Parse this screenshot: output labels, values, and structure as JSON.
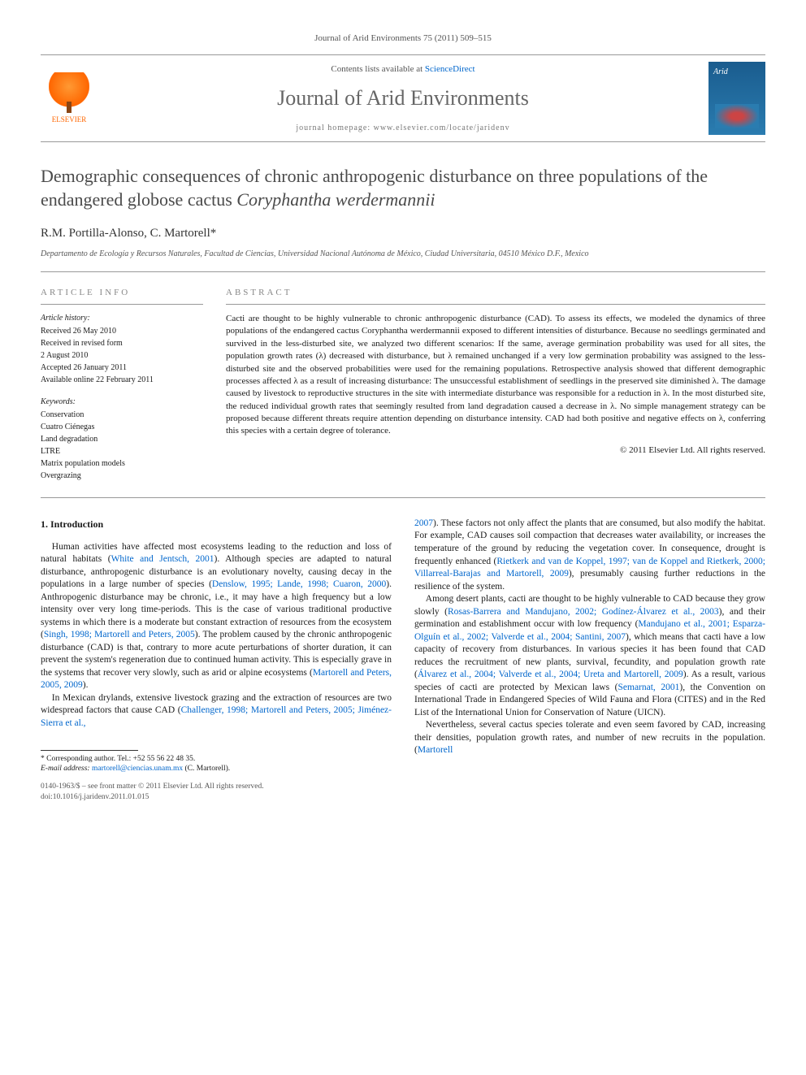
{
  "citation": "Journal of Arid Environments 75 (2011) 509–515",
  "masthead": {
    "contentsPrefix": "Contents lists available at ",
    "contentsLink": "ScienceDirect",
    "journalTitle": "Journal of Arid Environments",
    "homepagePrefix": "journal homepage: ",
    "homepageUrl": "www.elsevier.com/locate/jaridenv",
    "publisherName": "ELSEVIER",
    "coverLabel": "Arid"
  },
  "title": {
    "main": "Demographic consequences of chronic anthropogenic disturbance on three populations of the endangered globose cactus ",
    "species": "Coryphantha werdermannii"
  },
  "authors": "R.M. Portilla-Alonso, C. Martorell*",
  "affiliation": "Departamento de Ecología y Recursos Naturales, Facultad de Ciencias, Universidad Nacional Autónoma de México, Ciudad Universitaria, 04510 México D.F., Mexico",
  "info": {
    "heading": "ARTICLE INFO",
    "historyLabel": "Article history:",
    "history": [
      "Received 26 May 2010",
      "Received in revised form",
      "2 August 2010",
      "Accepted 26 January 2011",
      "Available online 22 February 2011"
    ],
    "keywordsLabel": "Keywords:",
    "keywords": [
      "Conservation",
      "Cuatro Ciénegas",
      "Land degradation",
      "LTRE",
      "Matrix population models",
      "Overgrazing"
    ]
  },
  "abstract": {
    "heading": "ABSTRACT",
    "text": "Cacti are thought to be highly vulnerable to chronic anthropogenic disturbance (CAD). To assess its effects, we modeled the dynamics of three populations of the endangered cactus Coryphantha werdermannii exposed to different intensities of disturbance. Because no seedlings germinated and survived in the less-disturbed site, we analyzed two different scenarios: If the same, average germination probability was used for all sites, the population growth rates (λ) decreased with disturbance, but λ remained unchanged if a very low germination probability was assigned to the less-disturbed site and the observed probabilities were used for the remaining populations. Retrospective analysis showed that different demographic processes affected λ as a result of increasing disturbance: The unsuccessful establishment of seedlings in the preserved site diminished λ. The damage caused by livestock to reproductive structures in the site with intermediate disturbance was responsible for a reduction in λ. In the most disturbed site, the reduced individual growth rates that seemingly resulted from land degradation caused a decrease in λ. No simple management strategy can be proposed because different threats require attention depending on disturbance intensity. CAD had both positive and negative effects on λ, conferring this species with a certain degree of tolerance.",
    "copyright": "© 2011 Elsevier Ltd. All rights reserved."
  },
  "sections": {
    "introHeading": "1. Introduction"
  },
  "body": {
    "col1": {
      "p1a": "Human activities have affected most ecosystems leading to the reduction and loss of natural habitats (",
      "c1": "White and Jentsch, 2001",
      "p1b": "). Although species are adapted to natural disturbance, anthropogenic disturbance is an evolutionary novelty, causing decay in the populations in a large number of species (",
      "c2": "Denslow, 1995; Lande, 1998; Cuaron, 2000",
      "p1c": "). Anthropogenic disturbance may be chronic, i.e., it may have a high frequency but a low intensity over very long time-periods. This is the case of various traditional productive systems in which there is a moderate but constant extraction of resources from the ecosystem (",
      "c3": "Singh, 1998; Martorell and Peters, 2005",
      "p1d": "). The problem caused by the chronic anthropogenic disturbance (CAD) is that, contrary to more acute perturbations of shorter duration, it can prevent the system's regeneration due to continued human activity. This is especially grave in the systems that recover very slowly, such as arid or alpine ecosystems (",
      "c4": "Martorell and Peters, 2005, 2009",
      "p1e": ").",
      "p2a": "In Mexican drylands, extensive livestock grazing and the extraction of resources are two widespread factors that cause CAD (",
      "c5": "Challenger, 1998; Martorell and Peters, 2005; Jiménez-Sierra et al.,"
    },
    "col2": {
      "c6": "2007",
      "p1a": "). These factors not only affect the plants that are consumed, but also modify the habitat. For example, CAD causes soil compaction that decreases water availability, or increases the temperature of the ground by reducing the vegetation cover. In consequence, drought is frequently enhanced (",
      "c7": "Rietkerk and van de Koppel, 1997; van de Koppel and Rietkerk, 2000; Villarreal-Barajas and Martorell, 2009",
      "p1b": "), presumably causing further reductions in the resilience of the system.",
      "p2a": "Among desert plants, cacti are thought to be highly vulnerable to CAD because they grow slowly (",
      "c8": "Rosas-Barrera and Mandujano, 2002; Godínez-Álvarez et al., 2003",
      "p2b": "), and their germination and establishment occur with low frequency (",
      "c9": "Mandujano et al., 2001; Esparza-Olguín et al., 2002; Valverde et al., 2004; Santini, 2007",
      "p2c": "), which means that cacti have a low capacity of recovery from disturbances. In various species it has been found that CAD reduces the recruitment of new plants, survival, fecundity, and population growth rate (",
      "c10": "Álvarez et al., 2004; Valverde et al., 2004; Ureta and Martorell, 2009",
      "p2d": "). As a result, various species of cacti are protected by Mexican laws (",
      "c11": "Semarnat, 2001",
      "p2e": "), the Convention on International Trade in Endangered Species of Wild Fauna and Flora (CITES) and in the Red List of the International Union for Conservation of Nature (UICN).",
      "p3a": "Nevertheless, several cactus species tolerate and even seem favored by CAD, increasing their densities, population growth rates, and number of new recruits in the population. (",
      "c12": "Martorell"
    }
  },
  "footnote": {
    "corresponding": "* Corresponding author. Tel.: +52 55 56 22 48 35.",
    "emailLabel": "E-mail address: ",
    "email": "martorell@ciencias.unam.mx",
    "emailSuffix": " (C. Martorell)."
  },
  "doi": {
    "line1": "0140-1963/$ – see front matter © 2011 Elsevier Ltd. All rights reserved.",
    "line2": "doi:10.1016/j.jaridenv.2011.01.015"
  }
}
